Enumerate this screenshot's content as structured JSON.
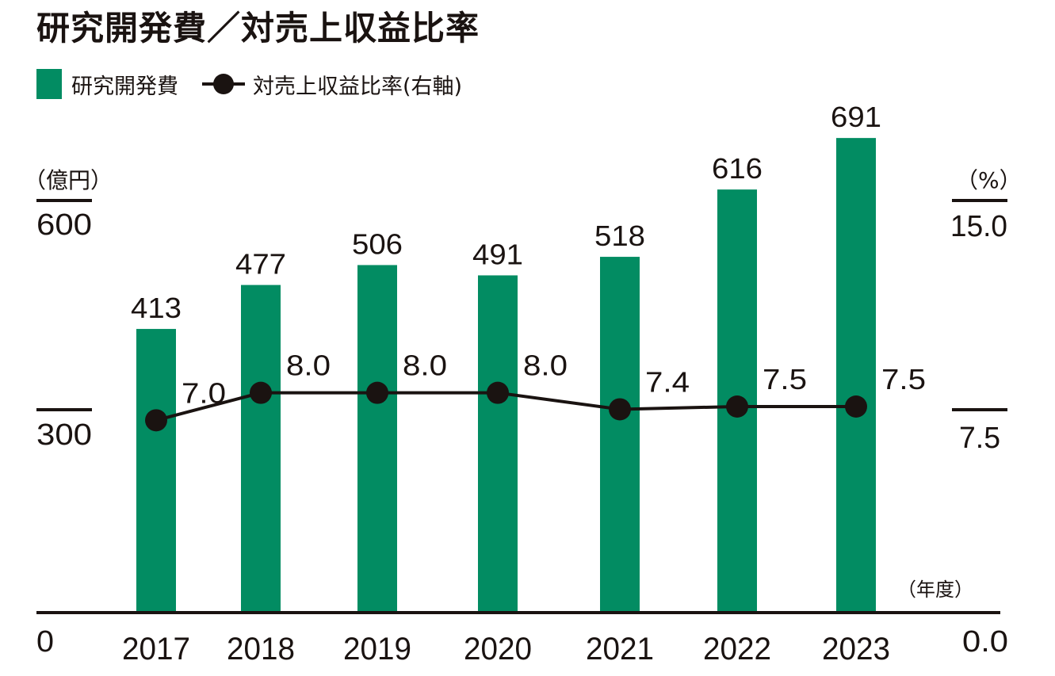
{
  "title": "研究開発費／対売上収益比率",
  "legend": {
    "bar_label": "研究開発費",
    "line_label": "対売上収益比率(右軸)",
    "bar_icon": "green-square-icon",
    "line_icon": "line-dot-icon"
  },
  "colors": {
    "bar": "#028c62",
    "line": "#1a1311",
    "text": "#1a1311"
  },
  "chart_data": {
    "type": "bar+line",
    "title": "研究開発費／対売上収益比率",
    "categories": [
      "2017",
      "2018",
      "2019",
      "2020",
      "2021",
      "2022",
      "2023"
    ],
    "series": [
      {
        "name": "研究開発費",
        "type": "bar",
        "axis": "left",
        "values": [
          413,
          477,
          506,
          491,
          518,
          616,
          691
        ],
        "labels": [
          "413",
          "477",
          "506",
          "491",
          "518",
          "616",
          "691"
        ]
      },
      {
        "name": "対売上収益比率(右軸)",
        "type": "line",
        "axis": "right",
        "values": [
          7.0,
          8.0,
          8.0,
          8.0,
          7.4,
          7.5,
          7.5
        ],
        "labels": [
          "7.0",
          "8.0",
          "8.0",
          "8.0",
          "7.4",
          "7.5",
          "7.5"
        ]
      }
    ],
    "left_axis": {
      "unit": "（億円）",
      "ylim": [
        0,
        600
      ],
      "ticks": [
        "0",
        "300",
        "600"
      ],
      "tick_values": [
        0,
        300,
        600
      ]
    },
    "right_axis": {
      "unit": "（%）",
      "ylim": [
        0,
        15
      ],
      "ticks": [
        "0.0",
        "7.5",
        "15.0"
      ],
      "tick_values": [
        0,
        7.5,
        15
      ]
    },
    "x_axis": {
      "unit": "（年度）"
    },
    "grid": false,
    "legend_position": "top-left"
  }
}
